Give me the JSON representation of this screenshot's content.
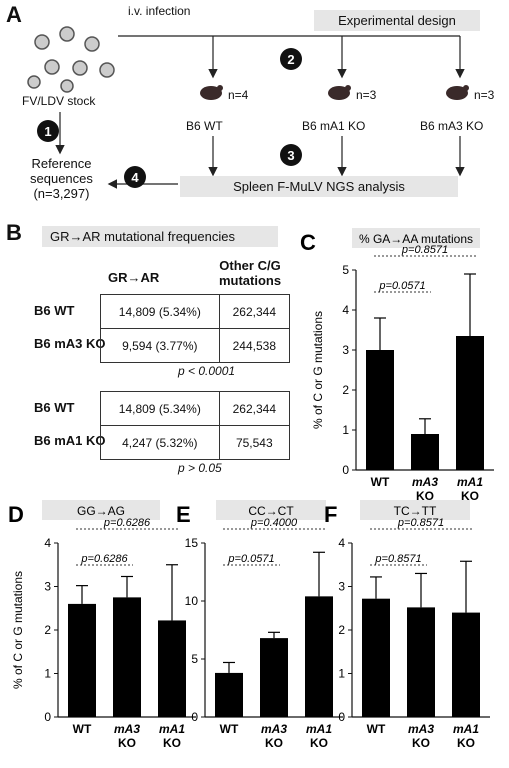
{
  "panelA": {
    "label": "A",
    "stock": "FV/LDV stock",
    "infection": "i.v. infection",
    "design": "Experimental design",
    "ref_line1": "Reference",
    "ref_line2": "sequences",
    "ref_line3": "(n=3,297)",
    "ngs": "Spleen F-MuLV NGS analysis",
    "steps": [
      "1",
      "2",
      "3",
      "4"
    ],
    "groups": [
      {
        "n": "n=4",
        "label": "B6 WT"
      },
      {
        "n": "n=3",
        "label": "B6 mA1 KO"
      },
      {
        "n": "n=3",
        "label": "B6 mA3 KO"
      }
    ]
  },
  "panelB": {
    "label": "B",
    "title": "GR→AR mutational frequencies",
    "col1": "GR→AR",
    "col2_line1": "Other C/G",
    "col2_line2": "mutations",
    "table1": {
      "rows": [
        {
          "label": "B6 WT",
          "c1": "14,809 (5.34%)",
          "c2": "262,344"
        },
        {
          "label": "B6 mA3 KO",
          "c1": "9,594 (3.77%)",
          "c2": "244,538"
        }
      ],
      "p": "p < 0.0001"
    },
    "table2": {
      "rows": [
        {
          "label": "B6 WT",
          "c1": "14,809 (5.34%)",
          "c2": "262,344"
        },
        {
          "label": "B6 mA1 KO",
          "c1": "4,247 (5.32%)",
          "c2": "75,543"
        }
      ],
      "p": "p > 0.05"
    }
  },
  "chart_data": [
    {
      "panel": "C",
      "type": "bar",
      "title": "% GA→AA mutations",
      "ylabel": "% of C or G mutations",
      "ylim": [
        0,
        5
      ],
      "yticks": [
        0,
        1,
        2,
        3,
        4,
        5
      ],
      "categories": [
        "WT",
        "mA3 KO",
        "mA1 KO"
      ],
      "values": [
        3.0,
        0.9,
        3.35
      ],
      "errors": [
        0.8,
        0.38,
        1.55
      ],
      "pvalues": [
        {
          "pair": [
            0,
            1
          ],
          "text": "p=0.0571"
        },
        {
          "pair": [
            0,
            2
          ],
          "text": "p=0.8571"
        }
      ]
    },
    {
      "panel": "D",
      "type": "bar",
      "title": "GG→AG",
      "ylabel": "% of C or G mutations",
      "ylim": [
        0,
        4
      ],
      "yticks": [
        0,
        1,
        2,
        3,
        4
      ],
      "categories": [
        "WT",
        "mA3 KO",
        "mA1 KO"
      ],
      "values": [
        2.6,
        2.75,
        2.22
      ],
      "errors": [
        0.42,
        0.48,
        1.28
      ],
      "pvalues": [
        {
          "pair": [
            0,
            1
          ],
          "text": "p=0.6286"
        },
        {
          "pair": [
            0,
            2
          ],
          "text": "p=0.6286"
        }
      ]
    },
    {
      "panel": "E",
      "type": "bar",
      "title": "CC→CT",
      "ylabel": "",
      "ylim": [
        0,
        15
      ],
      "yticks": [
        0,
        5,
        10,
        15
      ],
      "categories": [
        "WT",
        "mA3 KO",
        "mA1 KO"
      ],
      "values": [
        3.8,
        6.8,
        10.4
      ],
      "errors": [
        0.9,
        0.5,
        3.8
      ],
      "pvalues": [
        {
          "pair": [
            0,
            1
          ],
          "text": "p=0.0571"
        },
        {
          "pair": [
            0,
            2
          ],
          "text": "p=0.4000"
        }
      ]
    },
    {
      "panel": "F",
      "type": "bar",
      "title": "TC→TT",
      "ylabel": "",
      "ylim": [
        0,
        4
      ],
      "yticks": [
        0,
        1,
        2,
        3,
        4
      ],
      "categories": [
        "WT",
        "mA3 KO",
        "mA1 KO"
      ],
      "values": [
        2.72,
        2.52,
        2.4
      ],
      "errors": [
        0.5,
        0.78,
        1.18
      ],
      "pvalues": [
        {
          "pair": [
            0,
            1
          ],
          "text": "p=0.8571"
        },
        {
          "pair": [
            0,
            2
          ],
          "text": "p=0.8571"
        }
      ]
    }
  ]
}
